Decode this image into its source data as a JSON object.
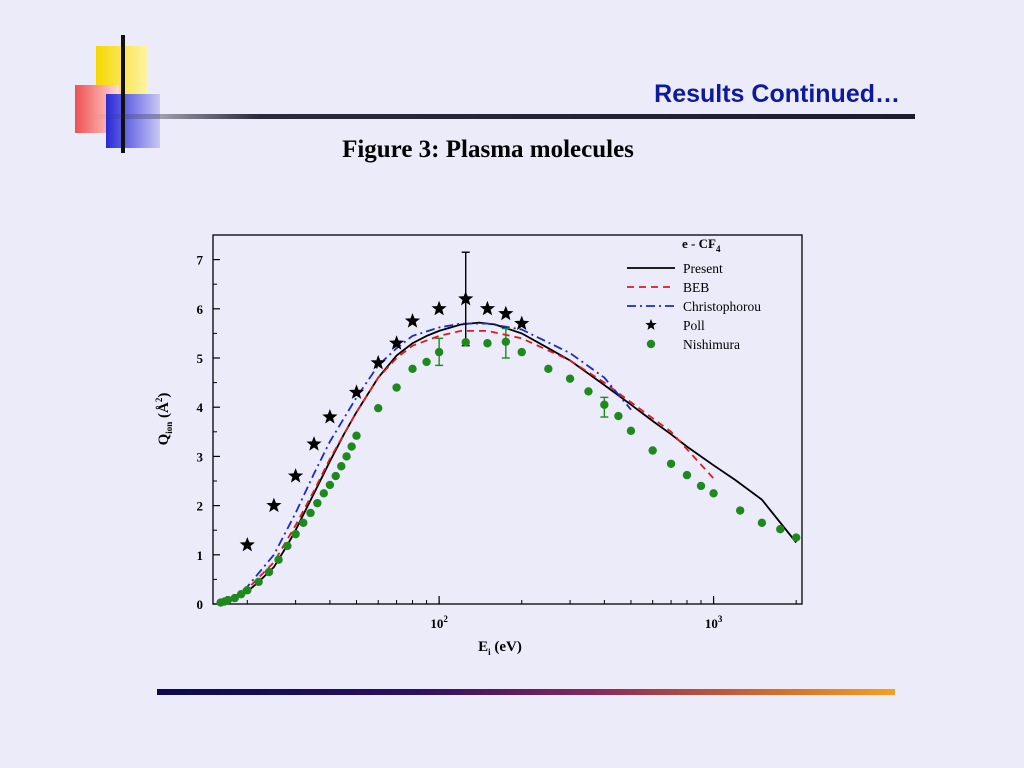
{
  "slide": {
    "title": "Results Continued…",
    "caption": "Figure 3: Plasma molecules"
  },
  "colors": {
    "background": "#ebebfa",
    "title": "#0d1a9c",
    "present": "#000000",
    "beb": "#e01a1a",
    "christophorou": "#1a2ac8",
    "poll": "#000000",
    "nishimura": "#1e8a1e"
  },
  "chart_data": {
    "type": "scatter",
    "title": "e - CF4",
    "xlabel": "Ei (eV)",
    "ylabel": "Qion (Å2)",
    "x_scale": "log",
    "xlim": [
      15,
      2100
    ],
    "ylim": [
      0,
      7.5
    ],
    "x_ticks": [
      {
        "value": 100,
        "label": "10",
        "exp": "2"
      },
      {
        "value": 1000,
        "label": "10",
        "exp": "3"
      }
    ],
    "y_ticks": [
      0,
      1,
      2,
      3,
      4,
      5,
      6,
      7
    ],
    "legend_position": "top-right",
    "series": [
      {
        "name": "Present",
        "kind": "line",
        "style": "solid",
        "points": [
          [
            16,
            0.01
          ],
          [
            18,
            0.1
          ],
          [
            20,
            0.25
          ],
          [
            22,
            0.45
          ],
          [
            25,
            0.75
          ],
          [
            28,
            1.2
          ],
          [
            30,
            1.5
          ],
          [
            35,
            2.25
          ],
          [
            40,
            2.9
          ],
          [
            45,
            3.45
          ],
          [
            50,
            3.9
          ],
          [
            60,
            4.6
          ],
          [
            70,
            5.05
          ],
          [
            80,
            5.3
          ],
          [
            90,
            5.45
          ],
          [
            100,
            5.55
          ],
          [
            120,
            5.68
          ],
          [
            140,
            5.72
          ],
          [
            160,
            5.68
          ],
          [
            200,
            5.5
          ],
          [
            250,
            5.2
          ],
          [
            300,
            4.95
          ],
          [
            400,
            4.45
          ],
          [
            500,
            4.05
          ],
          [
            600,
            3.72
          ],
          [
            700,
            3.45
          ],
          [
            800,
            3.2
          ],
          [
            1000,
            2.82
          ],
          [
            1200,
            2.52
          ],
          [
            1500,
            2.12
          ],
          [
            2000,
            1.25
          ]
        ]
      },
      {
        "name": "BEB",
        "kind": "line",
        "style": "dash",
        "points": [
          [
            16,
            0.01
          ],
          [
            20,
            0.3
          ],
          [
            25,
            0.85
          ],
          [
            30,
            1.6
          ],
          [
            35,
            2.3
          ],
          [
            40,
            2.95
          ],
          [
            50,
            3.9
          ],
          [
            60,
            4.6
          ],
          [
            70,
            5.0
          ],
          [
            80,
            5.25
          ],
          [
            100,
            5.45
          ],
          [
            120,
            5.55
          ],
          [
            150,
            5.55
          ],
          [
            200,
            5.4
          ],
          [
            300,
            4.95
          ],
          [
            400,
            4.5
          ],
          [
            500,
            4.1
          ],
          [
            700,
            3.5
          ],
          [
            1000,
            2.55
          ]
        ]
      },
      {
        "name": "Christophorou",
        "kind": "line",
        "style": "dashdot",
        "points": [
          [
            17,
            0.05
          ],
          [
            20,
            0.35
          ],
          [
            25,
            1.0
          ],
          [
            30,
            1.85
          ],
          [
            35,
            2.65
          ],
          [
            40,
            3.3
          ],
          [
            50,
            4.2
          ],
          [
            60,
            4.85
          ],
          [
            70,
            5.2
          ],
          [
            80,
            5.45
          ],
          [
            100,
            5.62
          ],
          [
            120,
            5.7
          ],
          [
            150,
            5.7
          ],
          [
            200,
            5.58
          ],
          [
            300,
            5.1
          ],
          [
            400,
            4.6
          ],
          [
            500,
            3.95
          ]
        ]
      },
      {
        "name": "Poll",
        "kind": "marker",
        "marker": "star",
        "points": [
          [
            20,
            1.2
          ],
          [
            25,
            2.0
          ],
          [
            30,
            2.6
          ],
          [
            35,
            3.25
          ],
          [
            40,
            3.8
          ],
          [
            50,
            4.3
          ],
          [
            60,
            4.9
          ],
          [
            70,
            5.3
          ],
          [
            80,
            5.75
          ],
          [
            100,
            6.0
          ],
          [
            125,
            6.2
          ],
          [
            150,
            6.0
          ],
          [
            175,
            5.9
          ],
          [
            200,
            5.7
          ]
        ],
        "error_bars": [
          {
            "x": 125,
            "low": 5.25,
            "high": 7.15
          }
        ]
      },
      {
        "name": "Nishimura",
        "kind": "marker",
        "marker": "circle",
        "points": [
          [
            16,
            0.03
          ],
          [
            16.5,
            0.05
          ],
          [
            17,
            0.08
          ],
          [
            18,
            0.12
          ],
          [
            19,
            0.2
          ],
          [
            20,
            0.28
          ],
          [
            22,
            0.45
          ],
          [
            24,
            0.65
          ],
          [
            26,
            0.9
          ],
          [
            28,
            1.18
          ],
          [
            30,
            1.42
          ],
          [
            32,
            1.65
          ],
          [
            34,
            1.85
          ],
          [
            36,
            2.05
          ],
          [
            38,
            2.25
          ],
          [
            40,
            2.42
          ],
          [
            42,
            2.6
          ],
          [
            44,
            2.8
          ],
          [
            46,
            3.0
          ],
          [
            48,
            3.2
          ],
          [
            50,
            3.42
          ],
          [
            60,
            3.98
          ],
          [
            70,
            4.4
          ],
          [
            80,
            4.78
          ],
          [
            90,
            4.92
          ],
          [
            100,
            5.12
          ],
          [
            125,
            5.32
          ],
          [
            150,
            5.3
          ],
          [
            175,
            5.33
          ],
          [
            200,
            5.12
          ],
          [
            250,
            4.78
          ],
          [
            300,
            4.58
          ],
          [
            350,
            4.32
          ],
          [
            400,
            4.05
          ],
          [
            450,
            3.82
          ],
          [
            500,
            3.52
          ],
          [
            600,
            3.12
          ],
          [
            700,
            2.85
          ],
          [
            800,
            2.62
          ],
          [
            900,
            2.4
          ],
          [
            1000,
            2.25
          ],
          [
            1250,
            1.9
          ],
          [
            1500,
            1.65
          ],
          [
            1750,
            1.52
          ],
          [
            2000,
            1.35
          ]
        ],
        "error_bars": [
          {
            "x": 100,
            "low": 4.85,
            "high": 5.4
          },
          {
            "x": 175,
            "low": 5.0,
            "high": 5.6
          },
          {
            "x": 400,
            "low": 3.8,
            "high": 4.2
          }
        ]
      }
    ]
  }
}
